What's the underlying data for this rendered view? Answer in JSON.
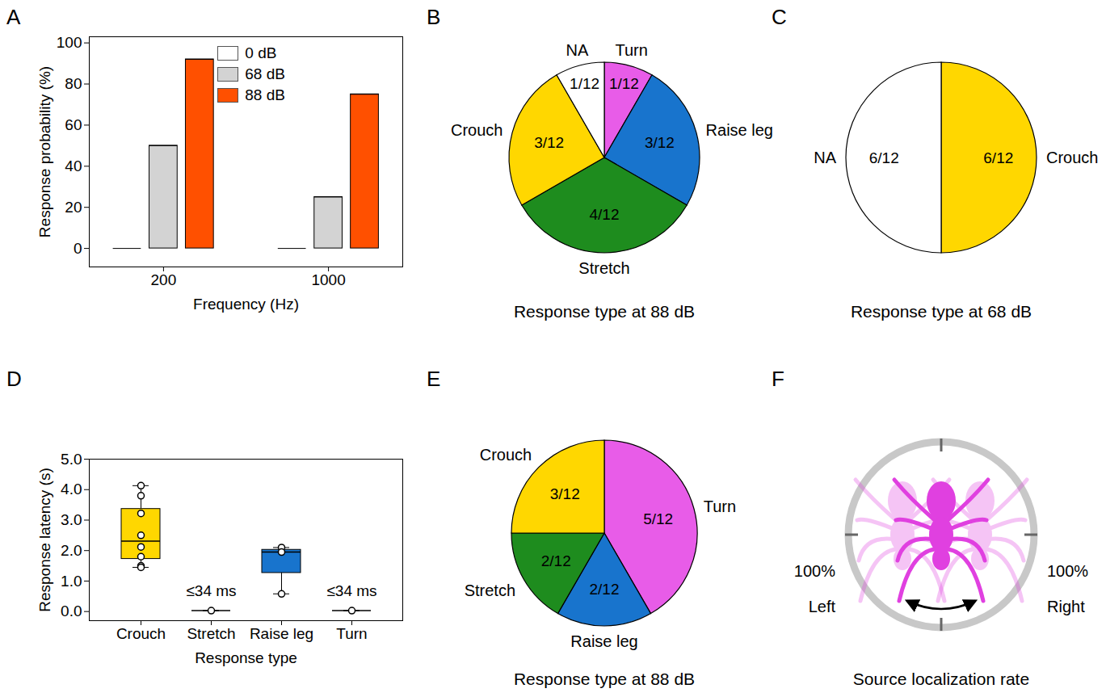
{
  "chart_data": [
    {
      "panel": "A",
      "type": "bar",
      "xlabel": "Frequency (Hz)",
      "ylabel": "Response probability (%)",
      "categories": [
        "200",
        "1000"
      ],
      "series": [
        {
          "name": "0 dB",
          "color": "#ffffff",
          "values": [
            0,
            0
          ]
        },
        {
          "name": "68 dB",
          "color": "#d3d3d3",
          "values": [
            50,
            25
          ]
        },
        {
          "name": "88 dB",
          "color": "#ff5000",
          "values": [
            92,
            75
          ]
        }
      ],
      "ylim": [
        -9,
        103
      ],
      "yticks": [
        0,
        20,
        40,
        60,
        80,
        100
      ],
      "legend": "top"
    },
    {
      "panel": "B",
      "type": "pie",
      "title": "Response type at 88 dB",
      "categories": [
        "Turn",
        "Raise leg",
        "Stretch",
        "Crouch",
        "NA"
      ],
      "values": [
        1,
        3,
        4,
        3,
        1
      ],
      "value_labels": [
        "1/12",
        "3/12",
        "4/12",
        "3/12",
        "1/12"
      ],
      "colors": [
        "#e85ce8",
        "#1874cd",
        "#1e8c1e",
        "#ffd700",
        "#ffffff"
      ],
      "data_labels": true
    },
    {
      "panel": "C",
      "type": "pie",
      "title": "Response type at 68 dB",
      "categories": [
        "Crouch",
        "NA"
      ],
      "values": [
        6,
        6
      ],
      "value_labels": [
        "6/12",
        "6/12"
      ],
      "colors": [
        "#ffd700",
        "#ffffff"
      ],
      "data_labels": true
    },
    {
      "panel": "D",
      "type": "box",
      "xlabel": "Response type",
      "ylabel": "Response latency (s)",
      "categories": [
        "Crouch",
        "Stretch",
        "Raise leg",
        "Turn"
      ],
      "values": [
        [
          4.13,
          3.8,
          3.22,
          2.5,
          2.12,
          1.8,
          1.5,
          1.45
        ],
        [
          0.03
        ],
        [
          2.1,
          1.95,
          0.58
        ],
        [
          0.03
        ]
      ],
      "colors": [
        "#ffd700",
        "#1e8c1e",
        "#1874cd",
        "#e85ce8"
      ],
      "annotations": [
        {
          "category": "Stretch",
          "text": "≤34 ms"
        },
        {
          "category": "Turn",
          "text": "≤34 ms"
        }
      ],
      "ylim": [
        -0.3,
        5
      ],
      "yticks": [
        0,
        1,
        2,
        3,
        4,
        5
      ]
    },
    {
      "panel": "E",
      "type": "pie",
      "title": "Response type at 88 dB",
      "categories": [
        "Turn",
        "Raise leg",
        "Stretch",
        "Crouch"
      ],
      "values": [
        5,
        2,
        2,
        3
      ],
      "value_labels": [
        "5/12",
        "2/12",
        "2/12",
        "3/12"
      ],
      "colors": [
        "#e85ce8",
        "#1874cd",
        "#1e8c1e",
        "#ffd700"
      ],
      "data_labels": true
    },
    {
      "panel": "F",
      "type": "diagram",
      "title": "Source localization rate",
      "categories": [
        "Left",
        "Right"
      ],
      "values": [
        100,
        100
      ],
      "value_labels": [
        "100%",
        "100%"
      ],
      "color": "#e040e0"
    }
  ]
}
